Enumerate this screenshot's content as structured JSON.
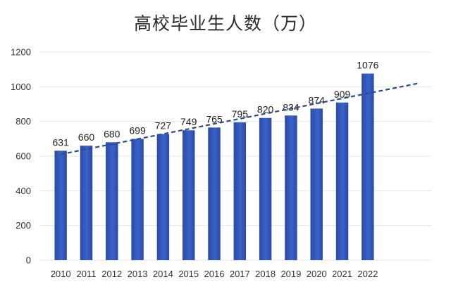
{
  "chart_data": {
    "type": "bar",
    "title": "高校毕业生人数（万）",
    "categories": [
      "2010",
      "2011",
      "2012",
      "2013",
      "2014",
      "2015",
      "2016",
      "2017",
      "2018",
      "2019",
      "2020",
      "2021",
      "2022"
    ],
    "values": [
      631,
      660,
      680,
      699,
      727,
      749,
      765,
      795,
      820,
      834,
      874,
      909,
      1076
    ],
    "ylim": [
      0,
      1200
    ],
    "yticks": [
      0,
      200,
      400,
      600,
      800,
      1000,
      1200
    ],
    "grid": true,
    "trendline": {
      "type": "linear",
      "style": "dashed"
    },
    "colors": {
      "bar": "#3a62c9",
      "bar_dark": "#2a4aa6",
      "trend": "#2c4a8c",
      "grid": "#e6e6e6"
    }
  }
}
